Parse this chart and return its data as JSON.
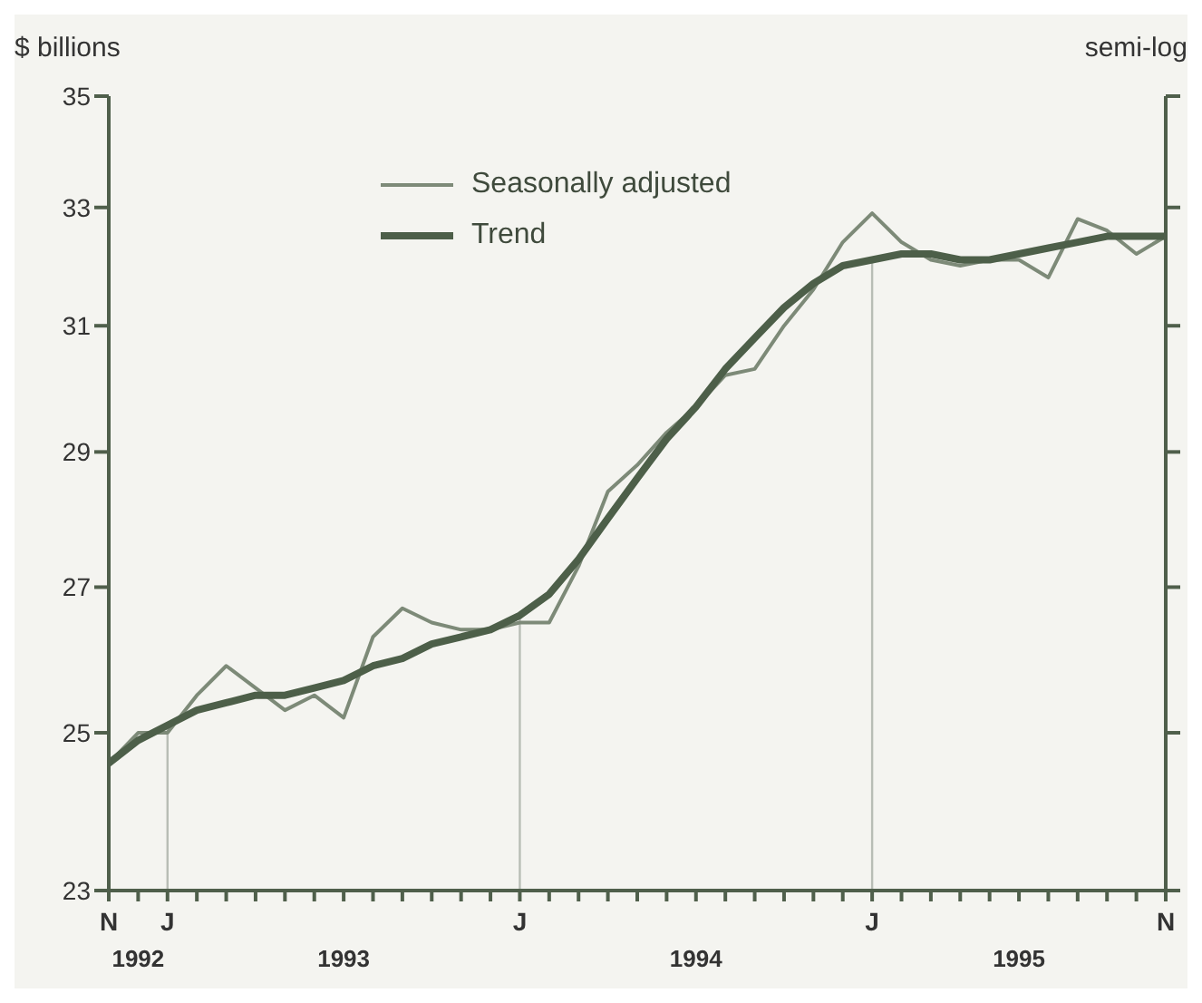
{
  "chart_data": {
    "type": "line",
    "ylabel": "$ billions",
    "annotations": [
      "semi-log"
    ],
    "categories": [
      "N",
      "\n1992",
      "J",
      null,
      null,
      null,
      null,
      null,
      "\n1993",
      null,
      null,
      null,
      null,
      null,
      "J",
      null,
      null,
      null,
      null,
      null,
      "\n1994",
      null,
      null,
      null,
      null,
      null,
      "J",
      null,
      null,
      null,
      null,
      "\n1995",
      null,
      null,
      null,
      null,
      "N"
    ],
    "series": [
      {
        "name": "Seasonally adjusted",
        "color": "#7d8a78",
        "line_style": "solid",
        "values": [
          24.6,
          25.0,
          25.0,
          25.5,
          25.9,
          25.6,
          25.3,
          25.5,
          25.2,
          26.3,
          26.7,
          26.5,
          26.4,
          26.4,
          26.5,
          26.5,
          27.3,
          28.4,
          28.8,
          29.3,
          29.7,
          30.2,
          30.3,
          31.0,
          31.6,
          32.4,
          32.9,
          32.4,
          32.1,
          32.0,
          32.1,
          32.1,
          31.8,
          32.8,
          32.6,
          32.2,
          32.5
        ]
      },
      {
        "name": "Trend",
        "color": "#4d5f49",
        "line_style": "solid",
        "values": [
          24.6,
          24.9,
          25.1,
          25.3,
          25.4,
          25.5,
          25.5,
          25.6,
          25.7,
          25.9,
          26.0,
          26.2,
          26.3,
          26.4,
          26.6,
          26.9,
          27.4,
          28.0,
          28.6,
          29.2,
          29.7,
          30.3,
          30.8,
          31.3,
          31.7,
          32.0,
          32.1,
          32.2,
          32.2,
          32.1,
          32.1,
          32.2,
          32.3,
          32.4,
          32.5,
          32.5,
          32.5
        ]
      }
    ],
    "ylim": [
      23,
      35
    ],
    "yticks": [
      23,
      25,
      27,
      29,
      31,
      33,
      35
    ],
    "log": true,
    "ref_lines": [
      {
        "axis": "x",
        "value": "J",
        "color": "#b8bdb5"
      }
    ],
    "legend": "top left",
    "marker": "none"
  }
}
